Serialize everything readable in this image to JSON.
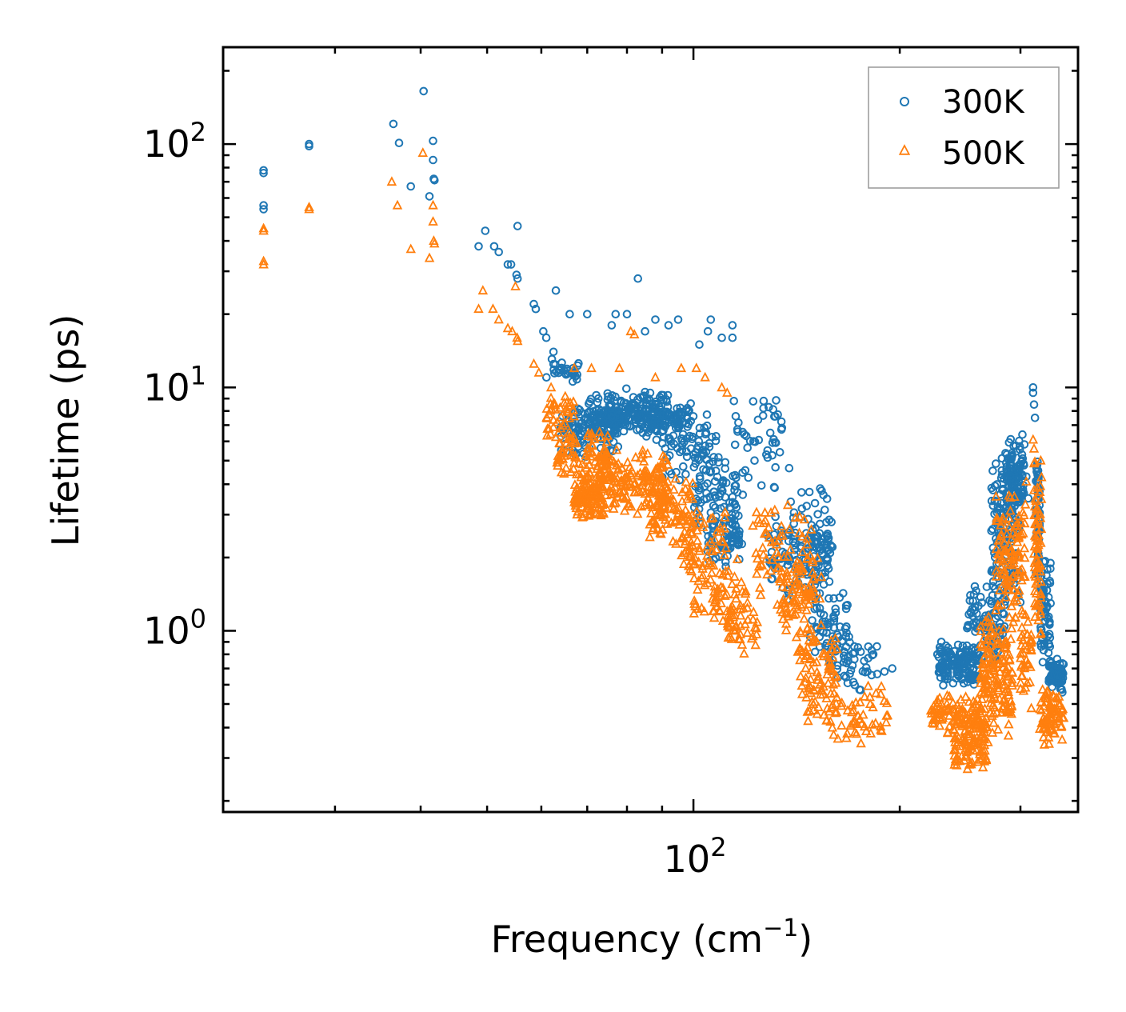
{
  "chart_data": {
    "type": "scatter",
    "title": "",
    "xlabel": "Frequency (cm",
    "xlabel_sup": "−1",
    "xlabel_end": ")",
    "ylabel": "Lifetime (ps)",
    "xscale": "log",
    "yscale": "log",
    "xlim": [
      20.6,
      364
    ],
    "ylim": [
      0.18,
      250
    ],
    "x_ticks": [
      {
        "value": 100,
        "base": "10",
        "exp": "2"
      }
    ],
    "y_ticks": [
      {
        "value": 1,
        "base": "10",
        "exp": "0"
      },
      {
        "value": 10,
        "base": "10",
        "exp": "1"
      },
      {
        "value": 100,
        "base": "10",
        "exp": "2"
      }
    ],
    "legend_position": "top-right",
    "series": [
      {
        "name": "300K",
        "color": "#1f77b4",
        "marker": "circle",
        "points": [
          [
            23.6,
            78
          ],
          [
            23.6,
            76
          ],
          [
            23.6,
            56
          ],
          [
            23.6,
            54
          ],
          [
            27.5,
            100
          ],
          [
            27.5,
            98
          ],
          [
            36.5,
            121
          ],
          [
            37.2,
            101
          ],
          [
            38.7,
            67
          ],
          [
            40.4,
            165
          ],
          [
            41.2,
            61
          ],
          [
            41.7,
            103
          ],
          [
            41.7,
            86
          ],
          [
            41.8,
            72
          ],
          [
            41.9,
            71
          ],
          [
            48.6,
            38
          ],
          [
            49.7,
            44
          ],
          [
            51.2,
            38
          ],
          [
            52,
            36
          ],
          [
            53.6,
            32
          ],
          [
            54.2,
            32
          ],
          [
            55.4,
            46
          ],
          [
            55.2,
            29
          ],
          [
            55.4,
            28
          ],
          [
            58.5,
            22
          ],
          [
            58.9,
            21
          ],
          [
            60.4,
            17
          ],
          [
            61,
            16
          ],
          [
            62.5,
            14
          ],
          [
            63,
            25
          ],
          [
            66,
            20
          ],
          [
            70,
            20
          ],
          [
            76,
            18
          ],
          [
            77,
            20
          ],
          [
            80,
            20
          ],
          [
            83,
            28
          ],
          [
            85,
            17
          ],
          [
            88,
            19
          ],
          [
            92,
            18
          ],
          [
            95,
            19
          ],
          [
            102,
            15
          ],
          [
            105,
            17
          ],
          [
            106,
            19
          ],
          [
            110,
            16
          ],
          [
            114,
            18
          ],
          [
            114,
            16
          ]
        ],
        "clusters": [
          {
            "x": [
              61,
              68
            ],
            "y": [
              10,
              14
            ],
            "n": 30
          },
          {
            "x": [
              64,
              78
            ],
            "y": [
              5,
              9
            ],
            "n": 120
          },
          {
            "x": [
              70,
              92
            ],
            "y": [
              6,
              10
            ],
            "n": 170
          },
          {
            "x": [
              75,
              100
            ],
            "y": [
              6.5,
              9
            ],
            "n": 140
          },
          {
            "x": [
              90,
              108
            ],
            "y": [
              4,
              8
            ],
            "n": 70
          },
          {
            "x": [
              100,
              116
            ],
            "y": [
              2.3,
              5.5
            ],
            "n": 80
          },
          {
            "x": [
              105,
              118
            ],
            "y": [
              1.8,
              3.2
            ],
            "n": 60
          },
          {
            "x": [
              114,
              138
            ],
            "y": [
              3.5,
              10
            ],
            "n": 50
          },
          {
            "x": [
              128,
              158
            ],
            "y": [
              1.2,
              3
            ],
            "n": 100
          },
          {
            "x": [
              138,
              160
            ],
            "y": [
              1.5,
              4
            ],
            "n": 60
          },
          {
            "x": [
              148,
              168
            ],
            "y": [
              0.65,
              1.5
            ],
            "n": 60
          },
          {
            "x": [
              158,
              186
            ],
            "y": [
              0.55,
              1.05
            ],
            "n": 45
          },
          {
            "x": [
              228,
              262
            ],
            "y": [
              0.58,
              0.9
            ],
            "n": 150
          },
          {
            "x": [
              250,
              285
            ],
            "y": [
              0.7,
              1.6
            ],
            "n": 100
          },
          {
            "x": [
              272,
              300
            ],
            "y": [
              1.2,
              6.4
            ],
            "n": 150
          },
          {
            "x": [
              286,
              304
            ],
            "y": [
              2.8,
              6.5
            ],
            "n": 100
          },
          {
            "x": [
              316,
              320
            ],
            "y": [
              1.5,
              6
            ],
            "n": 60
          },
          {
            "x": [
              321,
              332
            ],
            "y": [
              0.65,
              2.2
            ],
            "n": 70
          },
          {
            "x": [
              330,
              347
            ],
            "y": [
              0.55,
              0.78
            ],
            "n": 70
          }
        ],
        "extra_points": [
          [
            313,
            10
          ],
          [
            313,
            9.5
          ],
          [
            314,
            8.5
          ],
          [
            315,
            7.5
          ],
          [
            302,
            6.4
          ],
          [
            306,
            4.3
          ],
          [
            308,
            3.5
          ],
          [
            227,
            0.8
          ],
          [
            230,
            0.9
          ],
          [
            190,
            0.68
          ],
          [
            195,
            0.7
          ],
          [
            183,
            0.8
          ]
        ]
      },
      {
        "name": "500K",
        "color": "#ff7f0e",
        "marker": "triangle",
        "points": [
          [
            23.6,
            45
          ],
          [
            23.6,
            44
          ],
          [
            23.6,
            33
          ],
          [
            23.6,
            32
          ],
          [
            27.5,
            55
          ],
          [
            27.5,
            54
          ],
          [
            36.3,
            70
          ],
          [
            37,
            56
          ],
          [
            38.7,
            37
          ],
          [
            40.3,
            92
          ],
          [
            41.2,
            34
          ],
          [
            41.7,
            56
          ],
          [
            41.7,
            48
          ],
          [
            41.8,
            40
          ],
          [
            41.9,
            39
          ],
          [
            48.6,
            21
          ],
          [
            49.3,
            25
          ],
          [
            51,
            21
          ],
          [
            52,
            19
          ],
          [
            53.6,
            17.5
          ],
          [
            54.4,
            17
          ],
          [
            55,
            26
          ],
          [
            55.3,
            16
          ],
          [
            55.4,
            15.5
          ],
          [
            58.5,
            12.5
          ],
          [
            59.5,
            11.5
          ],
          [
            62,
            10
          ],
          [
            67,
            12
          ],
          [
            71,
            12
          ],
          [
            78,
            12
          ],
          [
            81,
            17
          ],
          [
            82,
            16.5
          ],
          [
            88,
            11
          ],
          [
            96,
            12
          ],
          [
            101,
            12
          ],
          [
            104,
            11
          ],
          [
            110,
            10
          ],
          [
            112,
            9.5
          ]
        ],
        "clusters": [
          {
            "x": [
              61,
              67
            ],
            "y": [
              6,
              10
            ],
            "n": 40
          },
          {
            "x": [
              63,
              75
            ],
            "y": [
              4,
              7
            ],
            "n": 90
          },
          {
            "x": [
              67,
              74
            ],
            "y": [
              2.8,
              4.5
            ],
            "n": 110
          },
          {
            "x": [
              72,
              92
            ],
            "y": [
              3,
              5.6
            ],
            "n": 180
          },
          {
            "x": [
              86,
              100
            ],
            "y": [
              2.2,
              4.5
            ],
            "n": 90
          },
          {
            "x": [
              96,
              112
            ],
            "y": [
              1.5,
              3.3
            ],
            "n": 70
          },
          {
            "x": [
              100,
              120
            ],
            "y": [
              1,
              2
            ],
            "n": 60
          },
          {
            "x": [
              112,
              124
            ],
            "y": [
              0.75,
              1.4
            ],
            "n": 40
          },
          {
            "x": [
              122,
              150
            ],
            "y": [
              1.3,
              3.8
            ],
            "n": 60
          },
          {
            "x": [
              132,
              154
            ],
            "y": [
              0.8,
              2.2
            ],
            "n": 90
          },
          {
            "x": [
              142,
              162
            ],
            "y": [
              0.4,
              1
            ],
            "n": 80
          },
          {
            "x": [
              155,
              192
            ],
            "y": [
              0.34,
              0.62
            ],
            "n": 60
          },
          {
            "x": [
              222,
              262
            ],
            "y": [
              0.36,
              0.56
            ],
            "n": 90
          },
          {
            "x": [
              240,
              268
            ],
            "y": [
              0.26,
              0.45
            ],
            "n": 90
          },
          {
            "x": [
              262,
              292
            ],
            "y": [
              0.32,
              1.2
            ],
            "n": 160
          },
          {
            "x": [
              276,
              305
            ],
            "y": [
              1,
              4
            ],
            "n": 110
          },
          {
            "x": [
              300,
              312
            ],
            "y": [
              0.45,
              1.3
            ],
            "n": 40
          },
          {
            "x": [
              314,
              322
            ],
            "y": [
              0.8,
              6
            ],
            "n": 70
          },
          {
            "x": [
              320,
              347
            ],
            "y": [
              0.32,
              0.6
            ],
            "n": 80
          }
        ],
        "extra_points": [
          [
            313,
            6.1
          ],
          [
            314,
            5.6
          ],
          [
            306,
            4.1
          ],
          [
            305,
            3.3
          ],
          [
            228,
            0.48
          ],
          [
            230,
            0.5
          ],
          [
            235,
            0.38
          ]
        ]
      }
    ]
  }
}
